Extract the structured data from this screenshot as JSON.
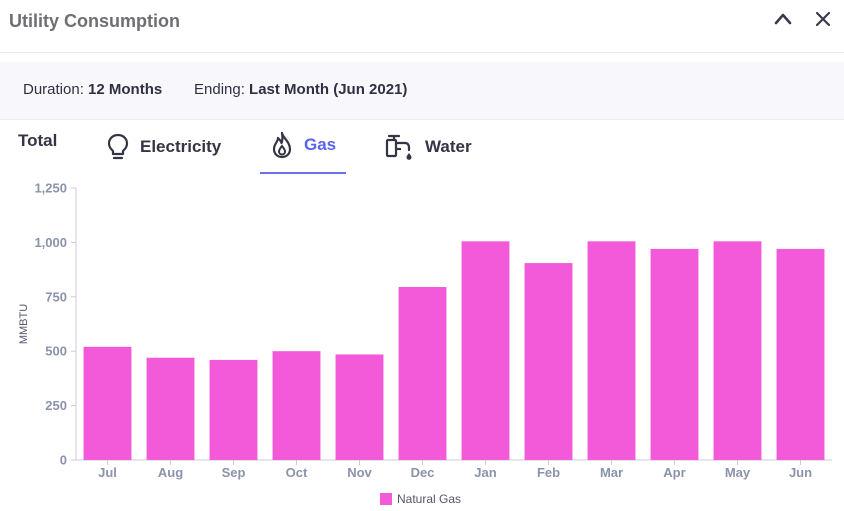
{
  "header": {
    "title": "Utility Consumption",
    "collapse_icon": "chevron-up-icon",
    "close_icon": "close-icon"
  },
  "filters": {
    "duration_label": "Duration:",
    "duration_value": "12 Months",
    "ending_label": "Ending:",
    "ending_value": "Last Month (Jun 2021)"
  },
  "tabs": [
    {
      "label": "Total",
      "icon": "",
      "active": false
    },
    {
      "label": "Electricity",
      "icon": "lightbulb-icon",
      "active": false
    },
    {
      "label": "Gas",
      "icon": "flame-icon",
      "active": true
    },
    {
      "label": "Water",
      "icon": "faucet-icon",
      "active": false
    }
  ],
  "colors": {
    "accent": "#5b63e6",
    "bar": "#f25ad9",
    "axis_text": "#8a93ab"
  },
  "chart_data": {
    "type": "bar",
    "categories": [
      "Jul",
      "Aug",
      "Sep",
      "Oct",
      "Nov",
      "Dec",
      "Jan",
      "Feb",
      "Mar",
      "Apr",
      "May",
      "Jun"
    ],
    "series": [
      {
        "name": "Natural Gas",
        "values": [
          520,
          470,
          460,
          500,
          485,
          795,
          1005,
          905,
          1005,
          970,
          1005,
          970
        ]
      }
    ],
    "title": "",
    "xlabel": "",
    "ylabel": "MMBTU",
    "ylim": [
      0,
      1250
    ],
    "yticks": [
      "0",
      "250",
      "500",
      "750",
      "1,000",
      "1,250"
    ],
    "ytick_values": [
      0,
      250,
      500,
      750,
      1000,
      1250
    ],
    "grid": false,
    "legend_position": "bottom-center"
  }
}
